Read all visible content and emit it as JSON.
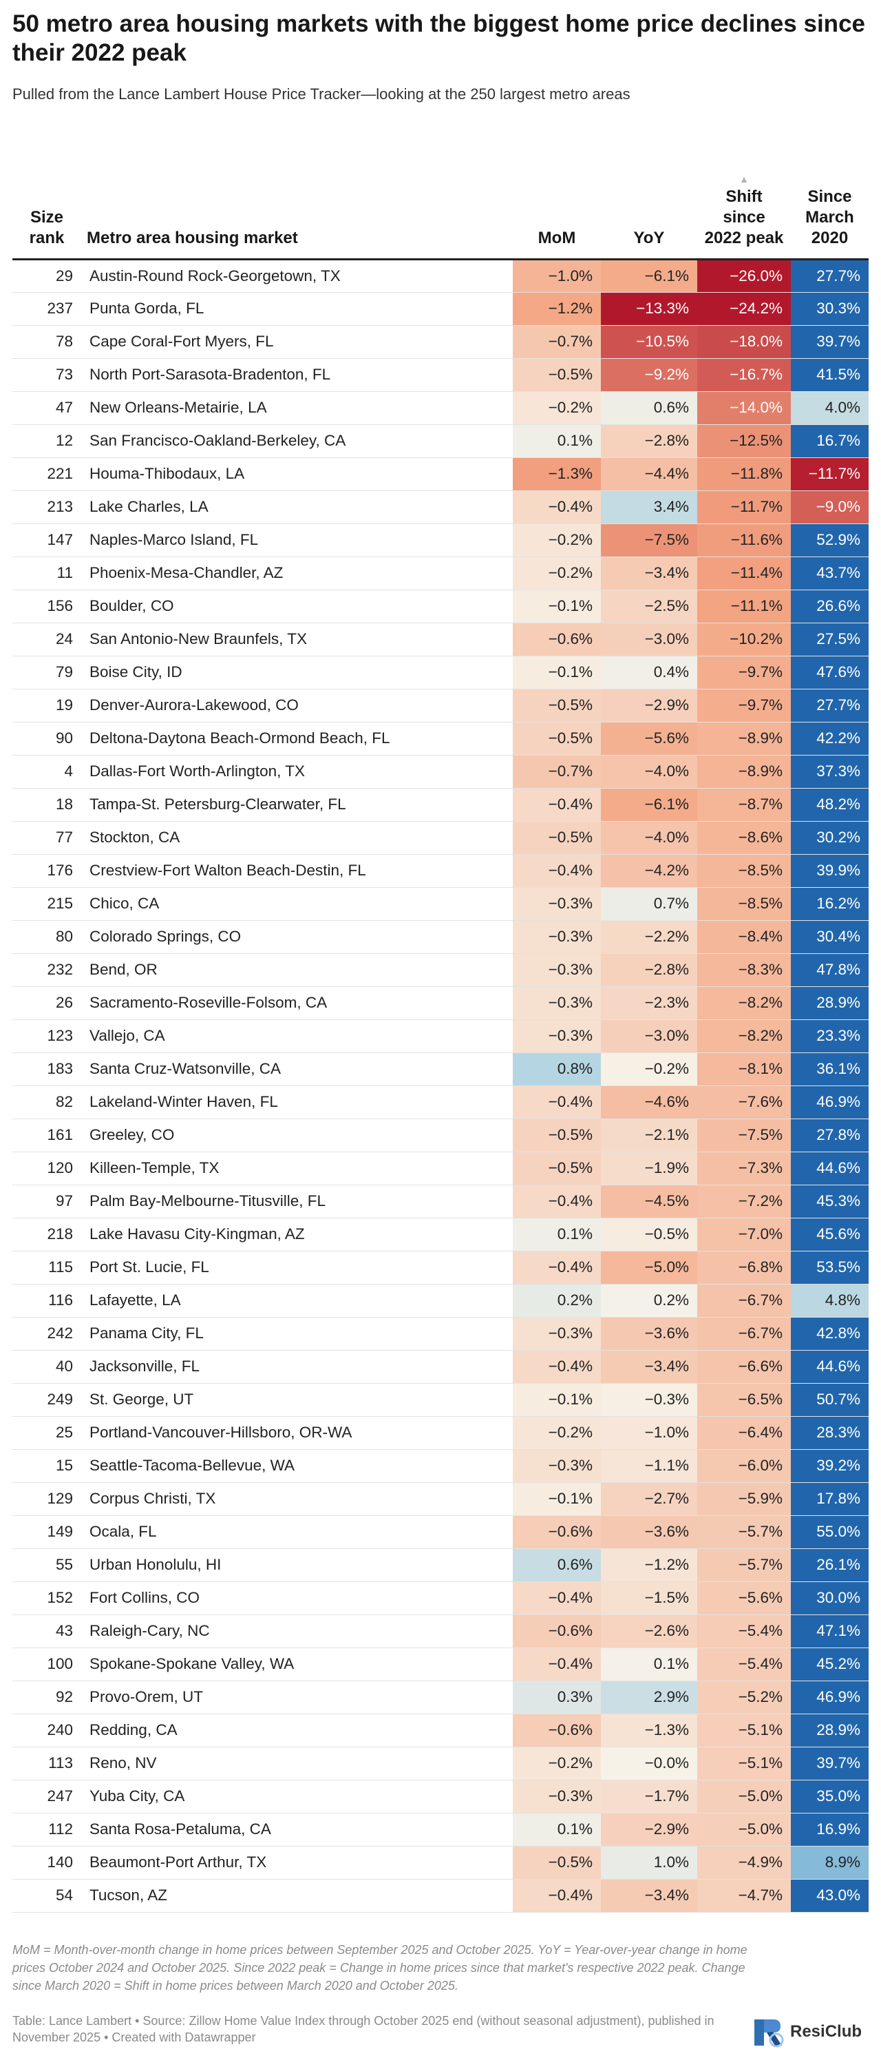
{
  "title": "50 metro area housing markets with the biggest home price declines since their 2022 peak",
  "subtitle": "Pulled from the Lance Lambert House Price Tracker—looking at the 250 largest metro areas",
  "columns": {
    "rank": "Size rank",
    "name": "Metro area housing market",
    "mom": "MoM",
    "yoy": "YoY",
    "peak": "Shift since 2022 peak",
    "since": "Since March 2020",
    "sort_indicator": "▲"
  },
  "rows": [
    {
      "rank": "29",
      "name": "Austin-Round Rock-Georgetown, TX",
      "mom": "−1.0%",
      "yoy": "−6.1%",
      "peak": "−26.0%",
      "since": "27.7%"
    },
    {
      "rank": "237",
      "name": "Punta Gorda, FL",
      "mom": "−1.2%",
      "yoy": "−13.3%",
      "peak": "−24.2%",
      "since": "30.3%"
    },
    {
      "rank": "78",
      "name": "Cape Coral-Fort Myers, FL",
      "mom": "−0.7%",
      "yoy": "−10.5%",
      "peak": "−18.0%",
      "since": "39.7%"
    },
    {
      "rank": "73",
      "name": "North Port-Sarasota-Bradenton, FL",
      "mom": "−0.5%",
      "yoy": "−9.2%",
      "peak": "−16.7%",
      "since": "41.5%"
    },
    {
      "rank": "47",
      "name": "New Orleans-Metairie, LA",
      "mom": "−0.2%",
      "yoy": "0.6%",
      "peak": "−14.0%",
      "since": "4.0%"
    },
    {
      "rank": "12",
      "name": "San Francisco-Oakland-Berkeley, CA",
      "mom": "0.1%",
      "yoy": "−2.8%",
      "peak": "−12.5%",
      "since": "16.7%"
    },
    {
      "rank": "221",
      "name": "Houma-Thibodaux, LA",
      "mom": "−1.3%",
      "yoy": "−4.4%",
      "peak": "−11.8%",
      "since": "−11.7%"
    },
    {
      "rank": "213",
      "name": "Lake Charles, LA",
      "mom": "−0.4%",
      "yoy": "3.4%",
      "peak": "−11.7%",
      "since": "−9.0%"
    },
    {
      "rank": "147",
      "name": "Naples-Marco Island, FL",
      "mom": "−0.2%",
      "yoy": "−7.5%",
      "peak": "−11.6%",
      "since": "52.9%"
    },
    {
      "rank": "11",
      "name": "Phoenix-Mesa-Chandler, AZ",
      "mom": "−0.2%",
      "yoy": "−3.4%",
      "peak": "−11.4%",
      "since": "43.7%"
    },
    {
      "rank": "156",
      "name": "Boulder, CO",
      "mom": "−0.1%",
      "yoy": "−2.5%",
      "peak": "−11.1%",
      "since": "26.6%"
    },
    {
      "rank": "24",
      "name": "San Antonio-New Braunfels, TX",
      "mom": "−0.6%",
      "yoy": "−3.0%",
      "peak": "−10.2%",
      "since": "27.5%"
    },
    {
      "rank": "79",
      "name": "Boise City, ID",
      "mom": "−0.1%",
      "yoy": "0.4%",
      "peak": "−9.7%",
      "since": "47.6%"
    },
    {
      "rank": "19",
      "name": "Denver-Aurora-Lakewood, CO",
      "mom": "−0.5%",
      "yoy": "−2.9%",
      "peak": "−9.7%",
      "since": "27.7%"
    },
    {
      "rank": "90",
      "name": "Deltona-Daytona Beach-Ormond Beach, FL",
      "mom": "−0.5%",
      "yoy": "−5.6%",
      "peak": "−8.9%",
      "since": "42.2%"
    },
    {
      "rank": "4",
      "name": "Dallas-Fort Worth-Arlington, TX",
      "mom": "−0.7%",
      "yoy": "−4.0%",
      "peak": "−8.9%",
      "since": "37.3%"
    },
    {
      "rank": "18",
      "name": "Tampa-St. Petersburg-Clearwater, FL",
      "mom": "−0.4%",
      "yoy": "−6.1%",
      "peak": "−8.7%",
      "since": "48.2%"
    },
    {
      "rank": "77",
      "name": "Stockton, CA",
      "mom": "−0.5%",
      "yoy": "−4.0%",
      "peak": "−8.6%",
      "since": "30.2%"
    },
    {
      "rank": "176",
      "name": "Crestview-Fort Walton Beach-Destin, FL",
      "mom": "−0.4%",
      "yoy": "−4.2%",
      "peak": "−8.5%",
      "since": "39.9%"
    },
    {
      "rank": "215",
      "name": "Chico, CA",
      "mom": "−0.3%",
      "yoy": "0.7%",
      "peak": "−8.5%",
      "since": "16.2%"
    },
    {
      "rank": "80",
      "name": "Colorado Springs, CO",
      "mom": "−0.3%",
      "yoy": "−2.2%",
      "peak": "−8.4%",
      "since": "30.4%"
    },
    {
      "rank": "232",
      "name": "Bend, OR",
      "mom": "−0.3%",
      "yoy": "−2.8%",
      "peak": "−8.3%",
      "since": "47.8%"
    },
    {
      "rank": "26",
      "name": "Sacramento-Roseville-Folsom, CA",
      "mom": "−0.3%",
      "yoy": "−2.3%",
      "peak": "−8.2%",
      "since": "28.9%"
    },
    {
      "rank": "123",
      "name": "Vallejo, CA",
      "mom": "−0.3%",
      "yoy": "−3.0%",
      "peak": "−8.2%",
      "since": "23.3%"
    },
    {
      "rank": "183",
      "name": "Santa Cruz-Watsonville, CA",
      "mom": "0.8%",
      "yoy": "−0.2%",
      "peak": "−8.1%",
      "since": "36.1%"
    },
    {
      "rank": "82",
      "name": "Lakeland-Winter Haven, FL",
      "mom": "−0.4%",
      "yoy": "−4.6%",
      "peak": "−7.6%",
      "since": "46.9%"
    },
    {
      "rank": "161",
      "name": "Greeley, CO",
      "mom": "−0.5%",
      "yoy": "−2.1%",
      "peak": "−7.5%",
      "since": "27.8%"
    },
    {
      "rank": "120",
      "name": "Killeen-Temple, TX",
      "mom": "−0.5%",
      "yoy": "−1.9%",
      "peak": "−7.3%",
      "since": "44.6%"
    },
    {
      "rank": "97",
      "name": "Palm Bay-Melbourne-Titusville, FL",
      "mom": "−0.4%",
      "yoy": "−4.5%",
      "peak": "−7.2%",
      "since": "45.3%"
    },
    {
      "rank": "218",
      "name": "Lake Havasu City-Kingman, AZ",
      "mom": "0.1%",
      "yoy": "−0.5%",
      "peak": "−7.0%",
      "since": "45.6%"
    },
    {
      "rank": "115",
      "name": "Port St. Lucie, FL",
      "mom": "−0.4%",
      "yoy": "−5.0%",
      "peak": "−6.8%",
      "since": "53.5%"
    },
    {
      "rank": "116",
      "name": "Lafayette, LA",
      "mom": "0.2%",
      "yoy": "0.2%",
      "peak": "−6.7%",
      "since": "4.8%"
    },
    {
      "rank": "242",
      "name": "Panama City, FL",
      "mom": "−0.3%",
      "yoy": "−3.6%",
      "peak": "−6.7%",
      "since": "42.8%"
    },
    {
      "rank": "40",
      "name": "Jacksonville, FL",
      "mom": "−0.4%",
      "yoy": "−3.4%",
      "peak": "−6.6%",
      "since": "44.6%"
    },
    {
      "rank": "249",
      "name": "St. George, UT",
      "mom": "−0.1%",
      "yoy": "−0.3%",
      "peak": "−6.5%",
      "since": "50.7%"
    },
    {
      "rank": "25",
      "name": "Portland-Vancouver-Hillsboro, OR-WA",
      "mom": "−0.2%",
      "yoy": "−1.0%",
      "peak": "−6.4%",
      "since": "28.3%"
    },
    {
      "rank": "15",
      "name": "Seattle-Tacoma-Bellevue, WA",
      "mom": "−0.3%",
      "yoy": "−1.1%",
      "peak": "−6.0%",
      "since": "39.2%"
    },
    {
      "rank": "129",
      "name": "Corpus Christi, TX",
      "mom": "−0.1%",
      "yoy": "−2.7%",
      "peak": "−5.9%",
      "since": "17.8%"
    },
    {
      "rank": "149",
      "name": "Ocala, FL",
      "mom": "−0.6%",
      "yoy": "−3.6%",
      "peak": "−5.7%",
      "since": "55.0%"
    },
    {
      "rank": "55",
      "name": "Urban Honolulu, HI",
      "mom": "0.6%",
      "yoy": "−1.2%",
      "peak": "−5.7%",
      "since": "26.1%"
    },
    {
      "rank": "152",
      "name": "Fort Collins, CO",
      "mom": "−0.4%",
      "yoy": "−1.5%",
      "peak": "−5.6%",
      "since": "30.0%"
    },
    {
      "rank": "43",
      "name": "Raleigh-Cary, NC",
      "mom": "−0.6%",
      "yoy": "−2.6%",
      "peak": "−5.4%",
      "since": "47.1%"
    },
    {
      "rank": "100",
      "name": "Spokane-Spokane Valley, WA",
      "mom": "−0.4%",
      "yoy": "0.1%",
      "peak": "−5.4%",
      "since": "45.2%"
    },
    {
      "rank": "92",
      "name": "Provo-Orem, UT",
      "mom": "0.3%",
      "yoy": "2.9%",
      "peak": "−5.2%",
      "since": "46.9%"
    },
    {
      "rank": "240",
      "name": "Redding, CA",
      "mom": "−0.6%",
      "yoy": "−1.3%",
      "peak": "−5.1%",
      "since": "28.9%"
    },
    {
      "rank": "113",
      "name": "Reno, NV",
      "mom": "−0.2%",
      "yoy": "−0.0%",
      "peak": "−5.1%",
      "since": "39.7%"
    },
    {
      "rank": "247",
      "name": "Yuba City, CA",
      "mom": "−0.3%",
      "yoy": "−1.7%",
      "peak": "−5.0%",
      "since": "35.0%"
    },
    {
      "rank": "112",
      "name": "Santa Rosa-Petaluma, CA",
      "mom": "0.1%",
      "yoy": "−2.9%",
      "peak": "−5.0%",
      "since": "16.9%"
    },
    {
      "rank": "140",
      "name": "Beaumont-Port Arthur, TX",
      "mom": "−0.5%",
      "yoy": "1.0%",
      "peak": "−4.9%",
      "since": "8.9%"
    },
    {
      "rank": "54",
      "name": "Tucson, AZ",
      "mom": "−0.4%",
      "yoy": "−3.4%",
      "peak": "−4.7%",
      "since": "43.0%"
    }
  ],
  "footnote": "MoM = Month-over-month change in home prices between September 2025 and October 2025. YoY = Year-over-year change in home prices October 2024 and October 2025. Since 2022 peak = Change in home prices since that market's respective 2022 peak. Change since March 2020 = Shift in home prices between March 2020 and October 2025.",
  "source": "Table: Lance Lambert • Source: Zillow Home Value Index through October 2025 end (without seasonal adjustment), published in November 2025 • Created with Datawrapper",
  "logo": {
    "text": "ResiClub",
    "icon": "resiclub-logo-icon"
  },
  "colors": {
    "neg_strong": "#b2182b",
    "pos_strong": "#2166ac",
    "neutral": "#f7f2e8"
  }
}
